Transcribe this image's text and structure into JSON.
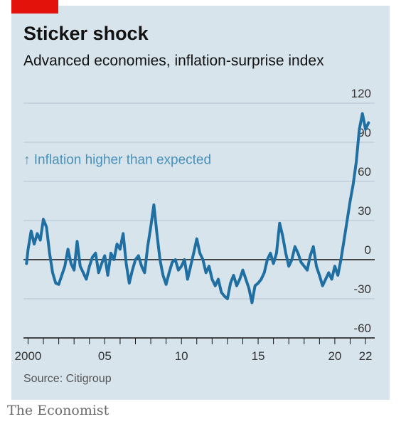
{
  "header": {
    "title": "Sticker shock",
    "subtitle": "Advanced economies, inflation-surprise index"
  },
  "footer": {
    "source": "Source: Citigroup",
    "brand": "The Economist"
  },
  "colors": {
    "line": "#1f6fa3",
    "background": "#d7e4ec",
    "accent": "#e3120b",
    "annotation": "#4a90b8"
  },
  "chart_data": {
    "type": "line",
    "title": "Sticker shock",
    "subtitle": "Advanced economies, inflation-surprise index",
    "xlim": [
      1999.7,
      2022.6
    ],
    "ylim": [
      -60,
      120
    ],
    "y_ticks": [
      120,
      90,
      60,
      30,
      0,
      -30,
      -60
    ],
    "x_ticks": [
      {
        "value": 2000,
        "label": "2000"
      },
      {
        "value": 2005,
        "label": "05"
      },
      {
        "value": 2010,
        "label": "10"
      },
      {
        "value": 2015,
        "label": "15"
      },
      {
        "value": 2020,
        "label": "20"
      },
      {
        "value": 2022,
        "label": "22"
      }
    ],
    "grid": true,
    "zero_line": true,
    "annotation": "↑ Inflation higher than expected",
    "series": [
      {
        "name": "",
        "x": [
          1999.9,
          2000.0,
          2000.2,
          2000.4,
          2000.6,
          2000.8,
          2001.0,
          2001.2,
          2001.4,
          2001.6,
          2001.8,
          2002.0,
          2002.2,
          2002.4,
          2002.6,
          2002.8,
          2003.0,
          2003.2,
          2003.4,
          2003.6,
          2003.8,
          2004.0,
          2004.2,
          2004.4,
          2004.6,
          2004.8,
          2005.0,
          2005.2,
          2005.4,
          2005.6,
          2005.8,
          2006.0,
          2006.2,
          2006.4,
          2006.6,
          2006.8,
          2007.0,
          2007.2,
          2007.4,
          2007.6,
          2007.8,
          2008.0,
          2008.2,
          2008.4,
          2008.6,
          2008.8,
          2009.0,
          2009.2,
          2009.4,
          2009.6,
          2009.8,
          2010.0,
          2010.2,
          2010.4,
          2010.6,
          2010.8,
          2011.0,
          2011.2,
          2011.4,
          2011.6,
          2011.8,
          2012.0,
          2012.2,
          2012.4,
          2012.6,
          2012.8,
          2013.0,
          2013.2,
          2013.4,
          2013.6,
          2013.8,
          2014.0,
          2014.2,
          2014.4,
          2014.6,
          2014.8,
          2015.0,
          2015.2,
          2015.4,
          2015.6,
          2015.8,
          2016.0,
          2016.2,
          2016.4,
          2016.6,
          2016.8,
          2017.0,
          2017.2,
          2017.4,
          2017.6,
          2017.8,
          2018.0,
          2018.2,
          2018.4,
          2018.6,
          2018.8,
          2019.0,
          2019.2,
          2019.4,
          2019.6,
          2019.8,
          2020.0,
          2020.2,
          2020.4,
          2020.6,
          2020.8,
          2021.0,
          2021.2,
          2021.4,
          2021.6,
          2021.8,
          2022.0,
          2022.2
        ],
        "values": [
          -3,
          8,
          22,
          12,
          20,
          15,
          31,
          25,
          5,
          -10,
          -18,
          -19,
          -12,
          -5,
          8,
          -3,
          -8,
          14,
          -5,
          -10,
          -15,
          -5,
          2,
          5,
          -10,
          -3,
          3,
          -12,
          5,
          0,
          12,
          8,
          20,
          -3,
          -18,
          -8,
          0,
          3,
          -5,
          -10,
          10,
          25,
          42,
          20,
          0,
          -12,
          -19,
          -10,
          -2,
          0,
          -8,
          -5,
          0,
          -15,
          -5,
          5,
          16,
          5,
          0,
          -10,
          -5,
          -15,
          -20,
          -15,
          -25,
          -28,
          -30,
          -18,
          -12,
          -20,
          -15,
          -8,
          -15,
          -22,
          -33,
          -20,
          -18,
          -15,
          -10,
          0,
          5,
          -3,
          5,
          28,
          18,
          5,
          -5,
          0,
          10,
          5,
          -2,
          -5,
          -8,
          3,
          10,
          -5,
          -12,
          -20,
          -15,
          -10,
          -15,
          -5,
          -12,
          0,
          15,
          30,
          45,
          58,
          75,
          100,
          112,
          100,
          105
        ]
      }
    ]
  }
}
